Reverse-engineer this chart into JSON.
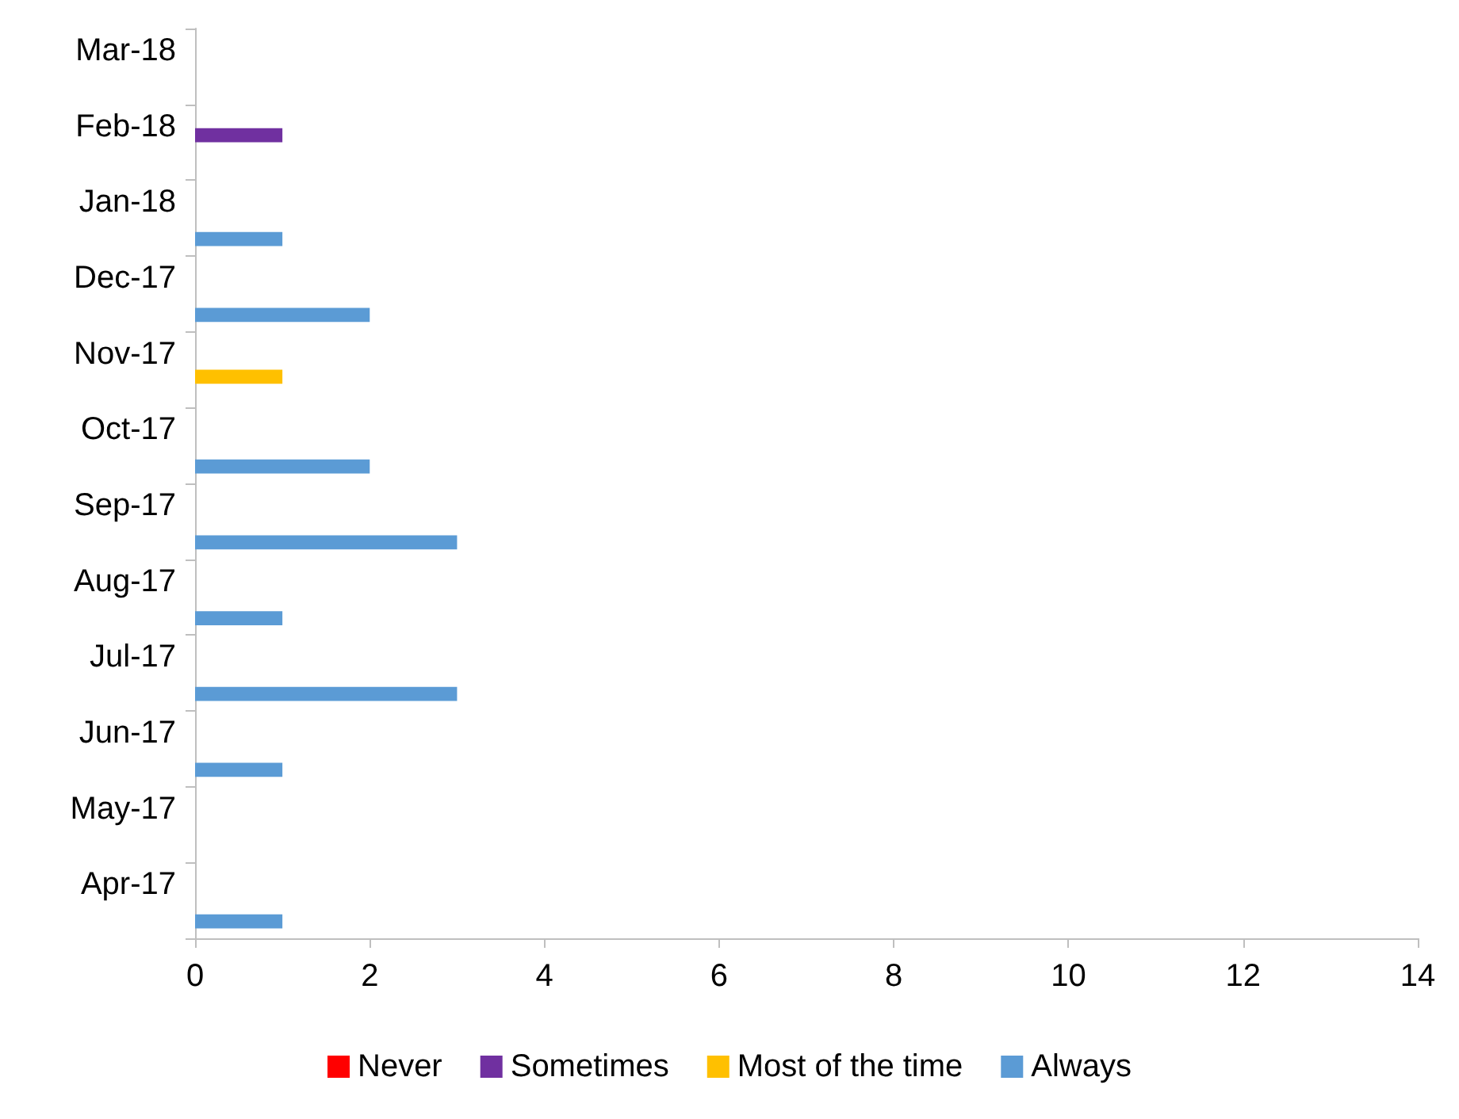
{
  "chart_data": {
    "type": "bar",
    "orientation": "horizontal",
    "categories": [
      "Mar-18",
      "Feb-18",
      "Jan-18",
      "Dec-17",
      "Nov-17",
      "Oct-17",
      "Sep-17",
      "Aug-17",
      "Jul-17",
      "Jun-17",
      "May-17",
      "Apr-17"
    ],
    "series": [
      {
        "name": "Never",
        "color": "#ff0000",
        "values": [
          0,
          0,
          0,
          0,
          0,
          0,
          0,
          0,
          0,
          0,
          0,
          0
        ]
      },
      {
        "name": "Sometimes",
        "color": "#7030a0",
        "values": [
          0,
          1,
          0,
          0,
          0,
          0,
          0,
          0,
          0,
          0,
          0,
          0
        ]
      },
      {
        "name": "Most of the time",
        "color": "#ffc000",
        "values": [
          0,
          0,
          0,
          0,
          1,
          0,
          0,
          0,
          0,
          0,
          0,
          0
        ]
      },
      {
        "name": "Always",
        "color": "#5b9bd5",
        "values": [
          0,
          0,
          1,
          2,
          0,
          2,
          3,
          1,
          3,
          1,
          0,
          1
        ]
      }
    ],
    "xlim": [
      0,
      14
    ],
    "xticks": [
      0,
      2,
      4,
      6,
      8,
      10,
      12,
      14
    ],
    "grid": false,
    "legend": "bottom"
  }
}
